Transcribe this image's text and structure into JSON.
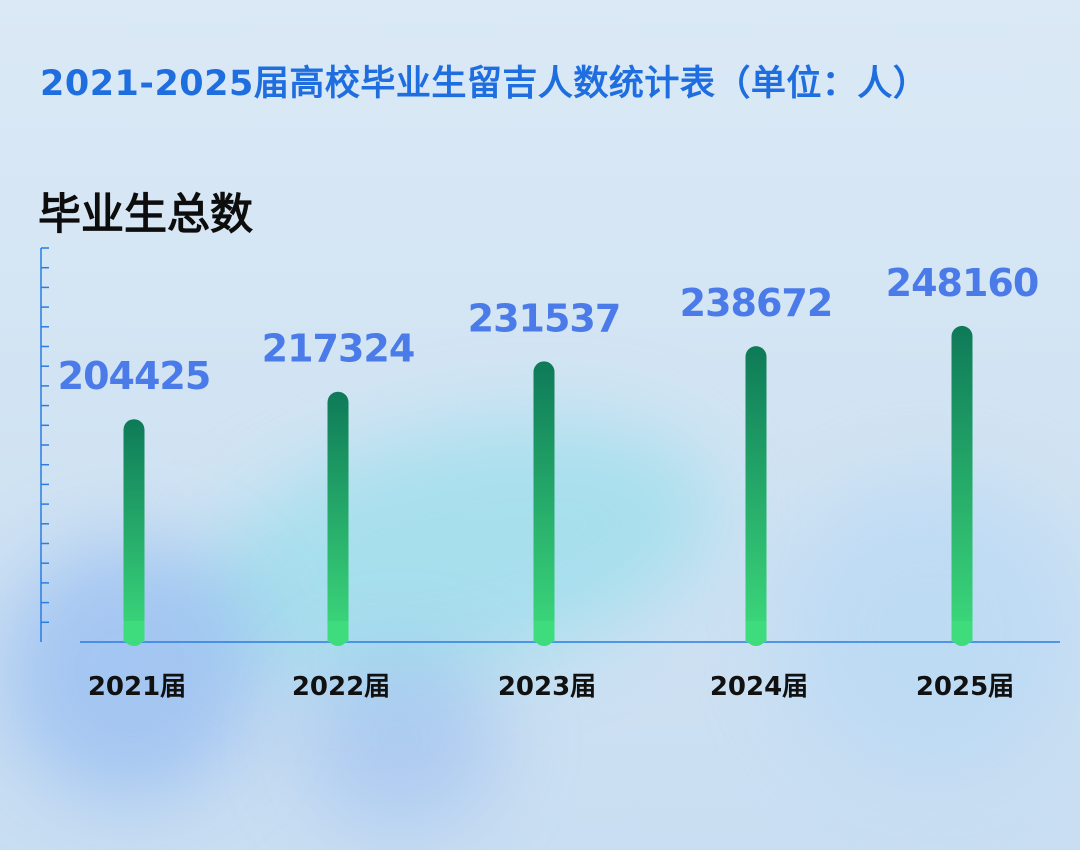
{
  "header": {
    "title": "2021-2025届高校毕业生留吉人数统计表（单位：人）"
  },
  "section": {
    "title": "毕业生总数"
  },
  "colors": {
    "title": "#1f6ee0",
    "value_label": "#4a7be8",
    "bar_top": "#0e7a58",
    "bar_bottom": "#3edc7c",
    "axis": "#2a7de1"
  },
  "chart_data": {
    "type": "bar",
    "title": "毕业生总数",
    "categories": [
      "2021届",
      "2022届",
      "2023届",
      "2024届",
      "2025届"
    ],
    "values": [
      204425,
      217324,
      231537,
      238672,
      248160
    ],
    "data_labels": [
      "204425",
      "217324",
      "231537",
      "238672",
      "248160"
    ],
    "ylim": [
      100000,
      250000
    ],
    "grid": false,
    "legend": "none"
  }
}
